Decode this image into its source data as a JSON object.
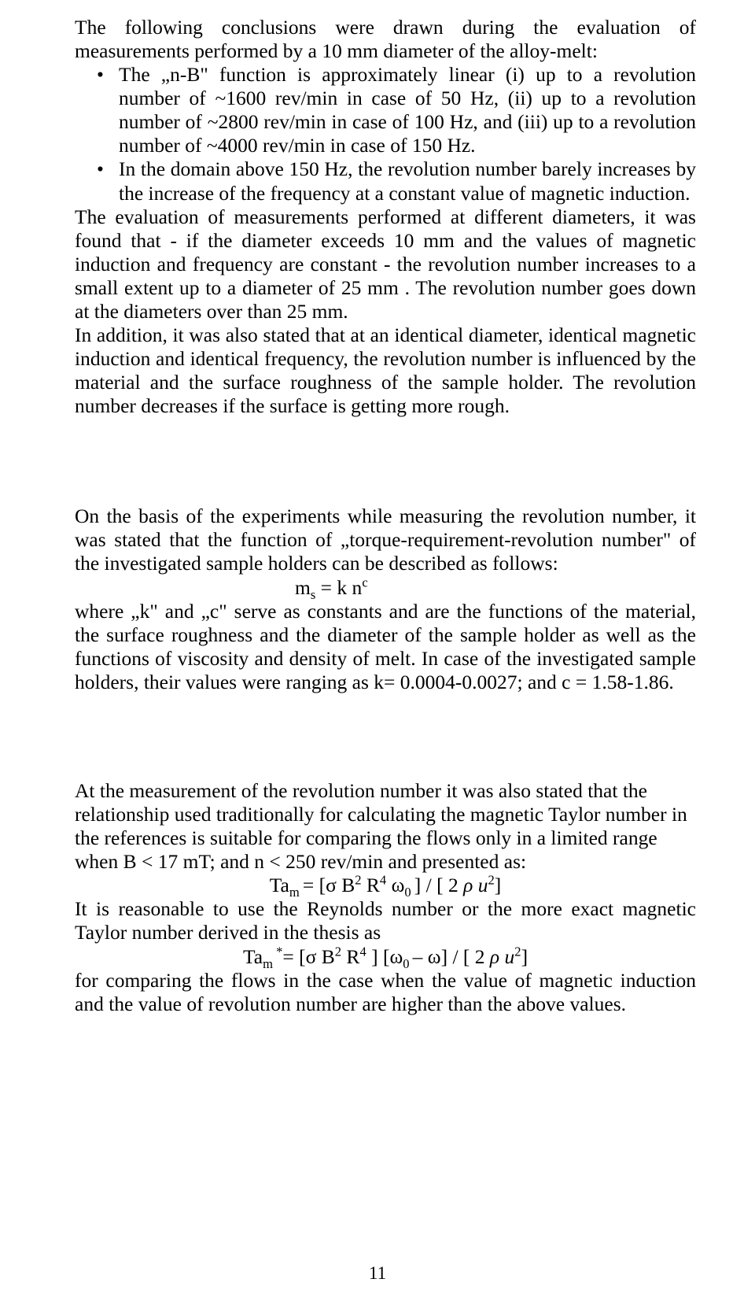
{
  "intro": "The following conclusions were drawn during the evaluation of measurements performed by a 10 mm diameter of the alloy-melt:",
  "bullets": [
    "The „n-B\" function is approximately linear (i) up to a revolution number of ~1600 rev/min in case of 50 Hz,  (ii) up to a revolution number of ~2800 rev/min in case  of 100 Hz, and   (iii)  up to a revolution number of ~4000 rev/min in case of  150 Hz.",
    "In the domain above 150 Hz, the revolution number barely increases by the increase of the frequency at a constant value of magnetic induction."
  ],
  "para_a": "The evaluation of measurements performed at different diameters, it was found that - if the diameter exceeds 10 mm and the values of magnetic induction and frequency are constant - the revolution number increases to a small extent up to a diameter of 25 mm . The revolution number goes down at the diameters over than 25 mm.",
  "para_b": "In addition, it was also stated that at an identical diameter, identical magnetic induction and identical frequency, the revolution number is influenced by the material and the surface roughness of the sample holder. The revolution number decreases if the surface is getting more rough.",
  "para_c1": "On the basis of the experiments while measuring the revolution number, it was stated that the function of „torque-requirement-revolution number\" of the investigated sample holders can be described as follows:",
  "eq1": {
    "lhs": "m",
    "lhs_sub": "s",
    "mid": " = k n",
    "exp": "c"
  },
  "para_c2": "where „k\" and „c\" serve as constants and are the functions of the material, the surface roughness and the diameter of  the sample holder as well as the functions of viscosity and density of melt. In case of the investigated sample holders, their values were ranging as     k= 0.0004-0.0027;  and c = 1.58-1.86.",
  "para_d1": "At the measurement of the revolution number it was also stated that the relationship used traditionally for calculating the magnetic Taylor number in the references is suitable for comparing the flows only in a limited range when B < 17 mT; and  n < 250 rev/min and presented as:",
  "eq2": {
    "pre": "Ta",
    "pre_sub": "m ",
    "a": "= [σ B",
    "e2a": "2",
    "b": " R",
    "e2b": "4",
    "c": " ω",
    "sub0": "0 ",
    "d": "] / [ 2 ",
    "rho": "ρ u",
    "e2c": "2",
    "close": "]"
  },
  "para_d2": "It is reasonable to use the Reynolds number or the more exact magnetic Taylor number derived in the thesis as",
  "eq3": {
    "pre": "Ta",
    "pre_sub": "m ",
    "star": "*",
    "a": "= [σ B",
    "e2a": "2",
    "b": " R",
    "e2b": "4",
    "c": "  ] [ω",
    "sub0": "0 ",
    "d": "– ω] / [ 2 ",
    "rho": "ρ u",
    "e2c": "2",
    "close": "]"
  },
  "para_d3": "for comparing the flows in the case when the value of magnetic induction and the value of revolution number are higher than the above values.",
  "page_number": "11"
}
